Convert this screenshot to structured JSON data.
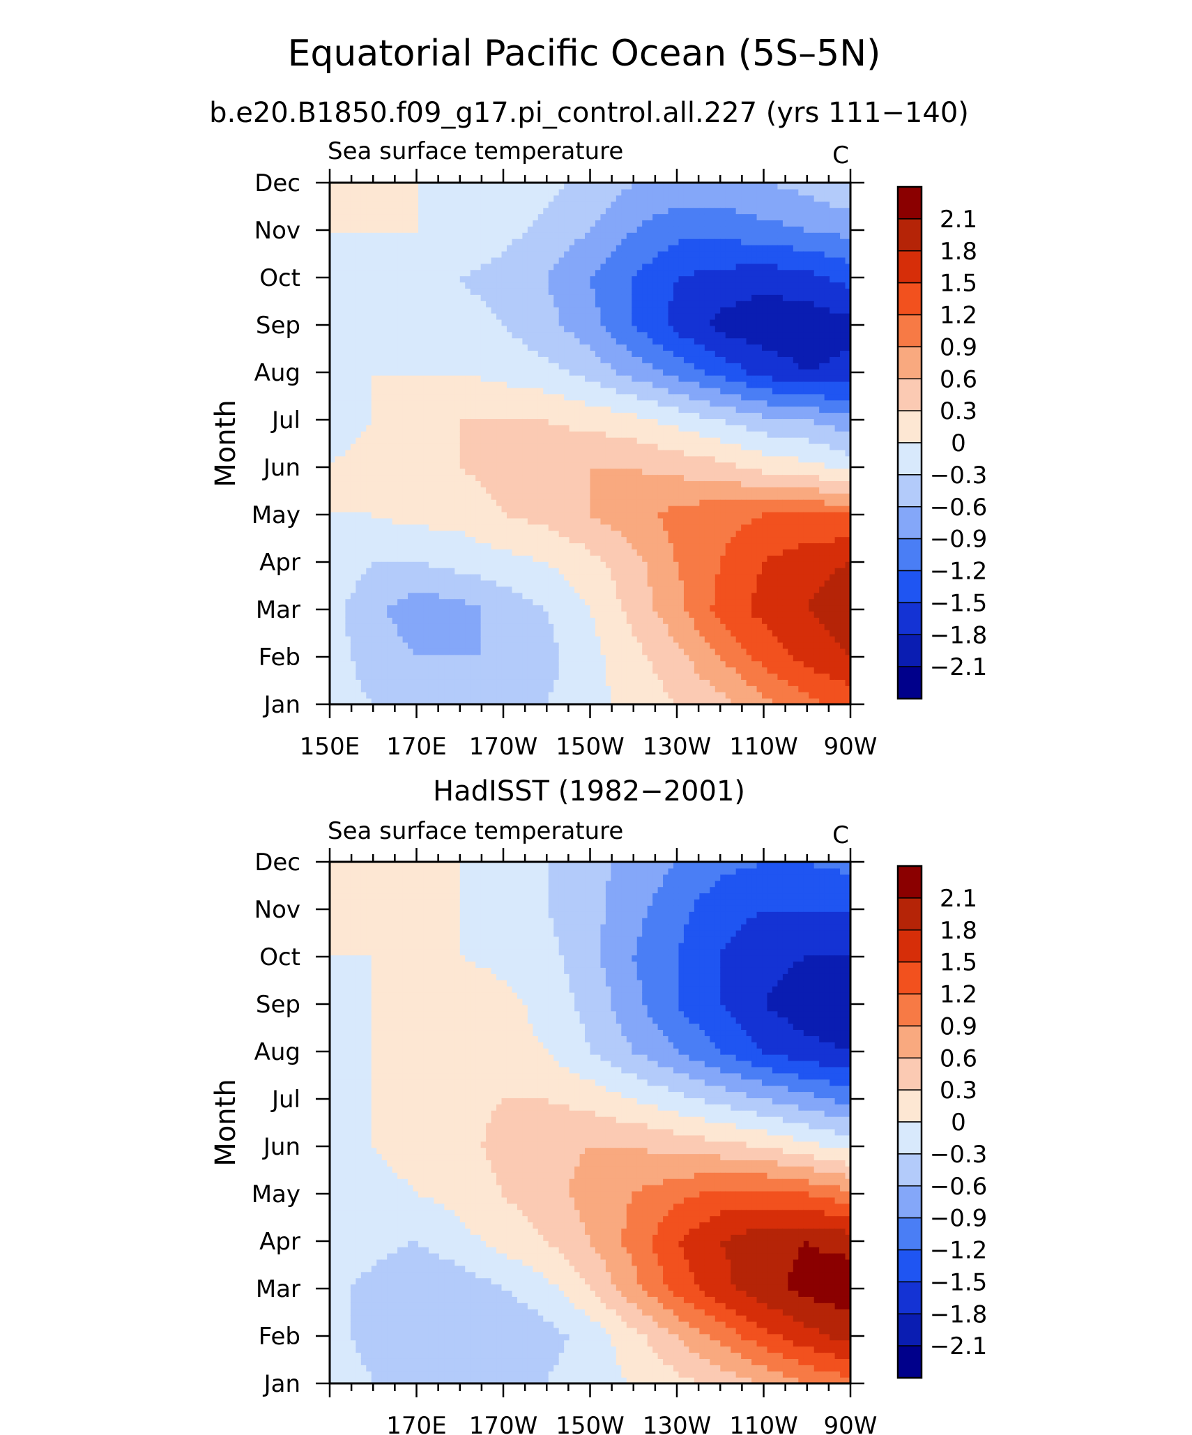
{
  "header": {
    "title": "Equatorial Pacific Ocean (5S–5N)",
    "subtitle": "b.e20.B1850.f09_g17.pi_control.all.227 (yrs 111−140)"
  },
  "colors": [
    "#00008b",
    "#0a1db2",
    "#1433d4",
    "#1f55f2",
    "#4a7ef5",
    "#84a7f9",
    "#b3cbfa",
    "#d8e9fc",
    "#fde7d3",
    "#fbcab3",
    "#f9a97f",
    "#f77a45",
    "#f2511e",
    "#d62e09",
    "#b52407",
    "#8b0000"
  ],
  "chart_data": [
    {
      "type": "heatmap",
      "heading": "",
      "subtitle": "Sea surface temperature",
      "units": "C",
      "ylabel": "Month",
      "x": [
        150,
        160,
        170,
        180,
        190,
        200,
        210,
        220,
        230,
        240,
        250,
        260,
        270
      ],
      "x_ticks": [
        {
          "v": 150,
          "label": "150E"
        },
        {
          "v": 170,
          "label": "170E"
        },
        {
          "v": 190,
          "label": "170W"
        },
        {
          "v": 210,
          "label": "150W"
        },
        {
          "v": 230,
          "label": "130W"
        },
        {
          "v": 250,
          "label": "110W"
        },
        {
          "v": 270,
          "label": "90W"
        }
      ],
      "y": [
        "Jan",
        "Feb",
        "Mar",
        "Apr",
        "May",
        "Jun",
        "Jul",
        "Aug",
        "Sep",
        "Oct",
        "Nov",
        "Dec"
      ],
      "levels": [
        -2.1,
        -1.8,
        -1.5,
        -1.2,
        -0.9,
        -0.6,
        -0.3,
        0,
        0.3,
        0.6,
        0.9,
        1.2,
        1.5,
        1.8,
        2.1
      ],
      "z": [
        [
          -0.2,
          -0.3,
          -0.4,
          -0.5,
          -0.5,
          -0.3,
          -0.1,
          0.1,
          0.3,
          0.5,
          0.8,
          1.1,
          1.3
        ],
        [
          -0.2,
          -0.4,
          -0.6,
          -0.6,
          -0.6,
          -0.4,
          -0.1,
          0.2,
          0.5,
          0.9,
          1.3,
          1.6,
          1.8
        ],
        [
          -0.2,
          -0.5,
          -0.8,
          -0.7,
          -0.5,
          -0.3,
          0.0,
          0.4,
          0.8,
          1.3,
          1.6,
          1.8,
          2.0
        ],
        [
          -0.1,
          -0.3,
          -0.3,
          -0.2,
          -0.1,
          0.0,
          0.2,
          0.5,
          0.9,
          1.2,
          1.5,
          1.7,
          1.8
        ],
        [
          0.0,
          0.0,
          0.1,
          0.1,
          0.3,
          0.4,
          0.6,
          0.8,
          1.0,
          1.1,
          1.2,
          1.2,
          1.2
        ],
        [
          0.0,
          0.1,
          0.2,
          0.3,
          0.4,
          0.5,
          0.6,
          0.6,
          0.5,
          0.4,
          0.2,
          0.1,
          -0.1
        ],
        [
          -0.1,
          0.0,
          0.2,
          0.3,
          0.3,
          0.3,
          0.2,
          0.1,
          -0.1,
          -0.3,
          -0.5,
          -0.6,
          -0.8
        ],
        [
          -0.1,
          0.0,
          0.0,
          0.0,
          -0.1,
          -0.2,
          -0.4,
          -0.7,
          -1.0,
          -1.3,
          -1.6,
          -1.8,
          -1.7
        ],
        [
          -0.1,
          -0.1,
          -0.1,
          -0.2,
          -0.3,
          -0.5,
          -0.8,
          -1.2,
          -1.6,
          -1.9,
          -2.0,
          -2.0,
          -1.9
        ],
        [
          -0.1,
          -0.1,
          -0.2,
          -0.3,
          -0.4,
          -0.6,
          -0.9,
          -1.2,
          -1.5,
          -1.6,
          -1.7,
          -1.6,
          -1.4
        ],
        [
          0.0,
          0.0,
          0.0,
          -0.1,
          -0.2,
          -0.4,
          -0.6,
          -0.9,
          -1.1,
          -1.1,
          -1.0,
          -0.9,
          -0.8
        ],
        [
          0.0,
          0.0,
          0.0,
          0.0,
          0.0,
          -0.2,
          -0.4,
          -0.6,
          -0.7,
          -0.7,
          -0.6,
          -0.5,
          -0.3
        ]
      ],
      "colorbar_labels": [
        "2.1",
        "1.8",
        "1.5",
        "1.2",
        "0.9",
        "0.6",
        "0.3",
        "0",
        "−0.3",
        "−0.6",
        "−0.9",
        "−1.2",
        "−1.5",
        "−1.8",
        "−2.1"
      ]
    },
    {
      "type": "heatmap",
      "heading": "HadISST (1982−2001)",
      "subtitle": "Sea surface temperature",
      "units": "C",
      "ylabel": "Month",
      "x": [
        150,
        160,
        170,
        180,
        190,
        200,
        210,
        220,
        230,
        240,
        250,
        260,
        270
      ],
      "x_ticks": [
        {
          "v": 170,
          "label": "170E"
        },
        {
          "v": 190,
          "label": "170W"
        },
        {
          "v": 210,
          "label": "150W"
        },
        {
          "v": 230,
          "label": "130W"
        },
        {
          "v": 250,
          "label": "110W"
        },
        {
          "v": 270,
          "label": "90W"
        }
      ],
      "y": [
        "Jan",
        "Feb",
        "Mar",
        "Apr",
        "May",
        "Jun",
        "Jul",
        "Aug",
        "Sep",
        "Oct",
        "Nov",
        "Dec"
      ],
      "levels": [
        -2.1,
        -1.8,
        -1.5,
        -1.2,
        -0.9,
        -0.6,
        -0.3,
        0,
        0.3,
        0.6,
        0.9,
        1.2,
        1.5,
        1.8,
        2.1
      ],
      "z": [
        [
          -0.1,
          -0.3,
          -0.5,
          -0.5,
          -0.4,
          -0.3,
          -0.1,
          0.0,
          0.2,
          0.4,
          0.6,
          0.9,
          1.1
        ],
        [
          -0.2,
          -0.4,
          -0.6,
          -0.6,
          -0.6,
          -0.4,
          -0.2,
          0.2,
          0.6,
          1.0,
          1.4,
          1.7,
          1.9
        ],
        [
          -0.2,
          -0.4,
          -0.6,
          -0.5,
          -0.3,
          -0.1,
          0.3,
          0.8,
          1.3,
          1.7,
          2.0,
          2.2,
          2.3
        ],
        [
          -0.1,
          -0.2,
          -0.3,
          -0.1,
          0.1,
          0.3,
          0.6,
          1.0,
          1.5,
          1.8,
          2.0,
          2.1,
          2.0
        ],
        [
          0.0,
          -0.1,
          0.0,
          0.1,
          0.3,
          0.5,
          0.7,
          0.9,
          1.1,
          1.3,
          1.3,
          1.2,
          1.0
        ],
        [
          -0.1,
          0.0,
          0.1,
          0.2,
          0.4,
          0.5,
          0.6,
          0.6,
          0.5,
          0.4,
          0.3,
          0.1,
          -0.1
        ],
        [
          -0.2,
          0.0,
          0.1,
          0.2,
          0.3,
          0.3,
          0.2,
          0.0,
          -0.2,
          -0.4,
          -0.6,
          -0.8,
          -1.0
        ],
        [
          -0.2,
          0.0,
          0.1,
          0.2,
          0.1,
          0.0,
          -0.3,
          -0.6,
          -0.9,
          -1.2,
          -1.5,
          -1.7,
          -1.8
        ],
        [
          -0.1,
          0.0,
          0.1,
          0.3,
          0.1,
          -0.1,
          -0.4,
          -0.8,
          -1.2,
          -1.5,
          -1.8,
          -2.0,
          -2.0
        ],
        [
          0.0,
          0.0,
          0.0,
          0.0,
          -0.1,
          -0.2,
          -0.5,
          -0.9,
          -1.2,
          -1.5,
          -1.7,
          -1.8,
          -1.8
        ],
        [
          0.0,
          0.0,
          0.0,
          0.0,
          -0.1,
          -0.3,
          -0.5,
          -0.8,
          -1.1,
          -1.4,
          -1.5,
          -1.5,
          -1.5
        ],
        [
          0.0,
          0.0,
          0.0,
          0.0,
          -0.1,
          -0.3,
          -0.5,
          -0.7,
          -0.9,
          -1.1,
          -1.2,
          -1.2,
          -1.1
        ]
      ],
      "colorbar_labels": [
        "2.1",
        "1.8",
        "1.5",
        "1.2",
        "0.9",
        "0.6",
        "0.3",
        "0",
        "−0.3",
        "−0.6",
        "−0.9",
        "−1.2",
        "−1.5",
        "−1.8",
        "−2.1"
      ]
    }
  ]
}
